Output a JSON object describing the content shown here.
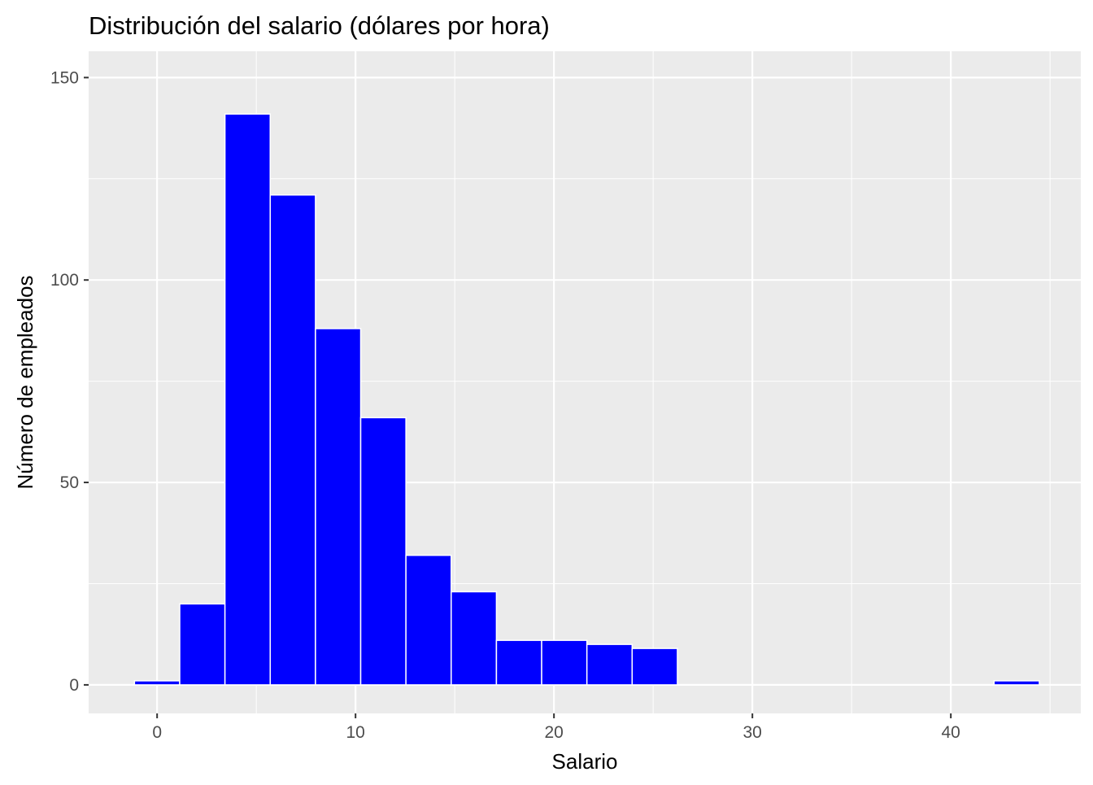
{
  "chart_data": {
    "type": "bar",
    "title": "Distribución del salario (dólares por hora)",
    "xlabel": "Salario",
    "ylabel": "Número de empleados",
    "xlim": [
      -3.45,
      46.55
    ],
    "ylim": [
      -7.05,
      156.5
    ],
    "x_ticks": [
      0,
      10,
      20,
      30,
      40
    ],
    "x_tick_labels": [
      "0",
      "10",
      "20",
      "30",
      "40"
    ],
    "y_ticks": [
      0,
      50,
      100,
      150
    ],
    "y_tick_labels": [
      "0",
      "50",
      "100",
      "150"
    ],
    "grid": true,
    "legend": "none",
    "bin_width": 2.28,
    "bins": [
      {
        "x_start": -1.14,
        "x_end": 1.14,
        "count": 1
      },
      {
        "x_start": 1.14,
        "x_end": 3.42,
        "count": 20
      },
      {
        "x_start": 3.42,
        "x_end": 5.7,
        "count": 141
      },
      {
        "x_start": 5.7,
        "x_end": 7.98,
        "count": 121
      },
      {
        "x_start": 7.98,
        "x_end": 10.26,
        "count": 88
      },
      {
        "x_start": 10.26,
        "x_end": 12.54,
        "count": 66
      },
      {
        "x_start": 12.54,
        "x_end": 14.82,
        "count": 32
      },
      {
        "x_start": 14.82,
        "x_end": 17.1,
        "count": 23
      },
      {
        "x_start": 17.1,
        "x_end": 19.38,
        "count": 11
      },
      {
        "x_start": 19.38,
        "x_end": 21.66,
        "count": 11
      },
      {
        "x_start": 21.66,
        "x_end": 23.94,
        "count": 10
      },
      {
        "x_start": 23.94,
        "x_end": 26.22,
        "count": 9
      },
      {
        "x_start": 42.18,
        "x_end": 44.46,
        "count": 1
      }
    ],
    "colors": {
      "bar_fill": "#0000ff",
      "bar_outline": "#ffffff",
      "panel_background": "#ebebeb",
      "grid_line": "#ffffff"
    }
  }
}
